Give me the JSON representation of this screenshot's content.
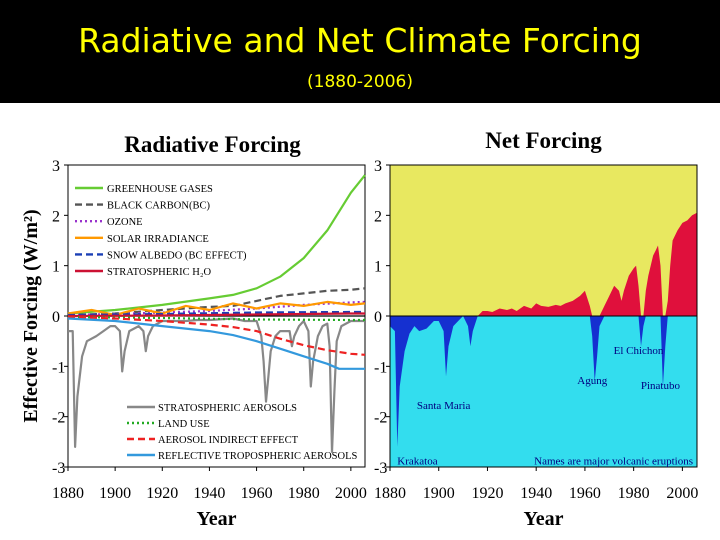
{
  "slide": {
    "title": "Radiative and Net Climate Forcing",
    "subtitle": "(1880-2006)"
  },
  "colors": {
    "header_bg": "#000000",
    "title_text": "#ffff00",
    "positive_fill": "#e8e860",
    "net_positive": "#e0103c",
    "negative_fill": "#33ddee",
    "net_negative": "#1530d0"
  },
  "chart_data": [
    {
      "type": "line",
      "title": "Radiative Forcing",
      "xlabel": "Year",
      "ylabel": "Effective Forcing (W/m²)",
      "xlim": [
        1880,
        2006
      ],
      "ylim": [
        -3,
        3
      ],
      "xticks": [
        1880,
        1900,
        1920,
        1940,
        1960,
        1980,
        2000
      ],
      "yticks": [
        3,
        2,
        1,
        0,
        -1,
        -2,
        -3
      ],
      "ytick_labels": [
        "3",
        "2",
        "1",
        "0",
        "-1",
        "-2",
        "-3"
      ],
      "legend_positive_placement": "top-left",
      "legend_negative_placement": "bottom-center",
      "series": [
        {
          "name": "GREENHOUSE GASES",
          "color": "#66cc33",
          "dash": "solid",
          "x": [
            1880,
            1900,
            1920,
            1940,
            1950,
            1960,
            1970,
            1980,
            1990,
            2000,
            2006
          ],
          "y": [
            0.05,
            0.12,
            0.22,
            0.35,
            0.42,
            0.55,
            0.78,
            1.15,
            1.7,
            2.45,
            2.8
          ]
        },
        {
          "name": "BLACK CARBON(BC)",
          "color": "#555555",
          "dash": "dashed",
          "x": [
            1880,
            1900,
            1920,
            1940,
            1950,
            1960,
            1970,
            1980,
            1990,
            2000,
            2006
          ],
          "y": [
            0.02,
            0.05,
            0.12,
            0.18,
            0.2,
            0.3,
            0.4,
            0.45,
            0.5,
            0.52,
            0.55
          ]
        },
        {
          "name": "OZONE",
          "color": "#9933cc",
          "dash": "dotted",
          "x": [
            1880,
            1900,
            1920,
            1940,
            1960,
            1980,
            2000,
            2006
          ],
          "y": [
            0.02,
            0.04,
            0.07,
            0.1,
            0.15,
            0.22,
            0.27,
            0.28
          ]
        },
        {
          "name": "SOLAR IRRADIANCE",
          "color": "#ff9900",
          "dash": "solid",
          "x": [
            1880,
            1890,
            1900,
            1910,
            1920,
            1930,
            1940,
            1950,
            1960,
            1970,
            1980,
            1990,
            2000,
            2006
          ],
          "y": [
            0.05,
            0.12,
            0.02,
            0.15,
            0.05,
            0.2,
            0.12,
            0.25,
            0.15,
            0.25,
            0.2,
            0.28,
            0.22,
            0.25
          ]
        },
        {
          "name": "SNOW ALBEDO (BC EFFECT)",
          "color": "#1a3fb5",
          "dash": "dashed",
          "x": [
            1880,
            1920,
            1960,
            2000,
            2006
          ],
          "y": [
            0.02,
            0.04,
            0.07,
            0.08,
            0.08
          ]
        },
        {
          "name": "STRATOSPHERIC H₂O",
          "color": "#cc1133",
          "dash": "solid",
          "x": [
            1880,
            1920,
            1960,
            2000,
            2006
          ],
          "y": [
            0.0,
            0.01,
            0.03,
            0.05,
            0.05
          ]
        },
        {
          "name": "STRATOSPHERIC AEROSOLS",
          "color": "#888888",
          "dash": "solid",
          "x": [
            1880,
            1882,
            1883,
            1884,
            1886,
            1888,
            1892,
            1895,
            1898,
            1900,
            1902,
            1903,
            1904,
            1906,
            1910,
            1912,
            1913,
            1914,
            1916,
            1920,
            1925,
            1930,
            1935,
            1940,
            1950,
            1955,
            1960,
            1962,
            1963,
            1964,
            1965,
            1966,
            1968,
            1970,
            1974,
            1975,
            1976,
            1978,
            1980,
            1982,
            1983,
            1984,
            1986,
            1988,
            1990,
            1991,
            1992,
            1993,
            1994,
            1996,
            2000,
            2006
          ],
          "y": [
            -0.3,
            -0.3,
            -2.6,
            -1.6,
            -0.8,
            -0.5,
            -0.4,
            -0.3,
            -0.2,
            -0.2,
            -0.3,
            -1.1,
            -0.7,
            -0.3,
            -0.2,
            -0.3,
            -0.7,
            -0.4,
            -0.2,
            -0.1,
            -0.1,
            -0.1,
            -0.08,
            -0.08,
            -0.05,
            -0.1,
            -0.1,
            -0.4,
            -0.9,
            -1.7,
            -1.2,
            -0.7,
            -0.4,
            -0.3,
            -0.3,
            -0.6,
            -0.4,
            -0.2,
            -0.1,
            -0.3,
            -1.4,
            -0.9,
            -0.4,
            -0.2,
            -0.15,
            -0.6,
            -2.7,
            -1.5,
            -0.5,
            -0.2,
            -0.1,
            -0.1
          ]
        },
        {
          "name": "LAND USE",
          "color": "#22aa22",
          "dash": "dotted",
          "x": [
            1880,
            1920,
            1960,
            2000,
            2006
          ],
          "y": [
            -0.02,
            -0.04,
            -0.07,
            -0.08,
            -0.08
          ]
        },
        {
          "name": "AEROSOL INDIRECT EFFECT",
          "color": "#ee2222",
          "dash": "dashed",
          "x": [
            1880,
            1900,
            1920,
            1940,
            1950,
            1960,
            1970,
            1980,
            1990,
            2000,
            2006
          ],
          "y": [
            -0.02,
            -0.05,
            -0.1,
            -0.17,
            -0.22,
            -0.3,
            -0.45,
            -0.58,
            -0.68,
            -0.75,
            -0.77
          ]
        },
        {
          "name": "REFLECTIVE TROPOSPHERIC AEROSOLS",
          "color": "#3399dd",
          "dash": "solid",
          "x": [
            1880,
            1900,
            1920,
            1940,
            1950,
            1960,
            1970,
            1980,
            1990,
            1995,
            2000,
            2006
          ],
          "y": [
            -0.05,
            -0.1,
            -0.2,
            -0.3,
            -0.38,
            -0.5,
            -0.65,
            -0.8,
            -0.95,
            -1.05,
            -1.05,
            -1.05
          ]
        }
      ]
    },
    {
      "type": "area",
      "title": "Net Forcing",
      "xlabel": "Year",
      "xlim": [
        1880,
        2006
      ],
      "ylim": [
        -3,
        3
      ],
      "xticks": [
        1880,
        1900,
        1920,
        1940,
        1960,
        1980,
        2000
      ],
      "yticks": [
        3,
        2,
        1,
        0,
        -1,
        -2,
        -3
      ],
      "ytick_labels": [
        "3",
        "2",
        "1",
        "0",
        "-1",
        "-2",
        "-3"
      ],
      "net": {
        "x": [
          1880,
          1882,
          1883,
          1884,
          1886,
          1888,
          1890,
          1892,
          1895,
          1898,
          1900,
          1902,
          1903,
          1904,
          1906,
          1908,
          1910,
          1912,
          1913,
          1914,
          1916,
          1918,
          1920,
          1922,
          1925,
          1928,
          1930,
          1932,
          1935,
          1938,
          1940,
          1942,
          1945,
          1948,
          1950,
          1952,
          1955,
          1958,
          1960,
          1962,
          1963,
          1964,
          1965,
          1966,
          1968,
          1970,
          1972,
          1974,
          1975,
          1976,
          1978,
          1980,
          1981,
          1982,
          1983,
          1984,
          1985,
          1986,
          1988,
          1989,
          1990,
          1991,
          1992,
          1993,
          1994,
          1995,
          1996,
          1998,
          2000,
          2002,
          2004,
          2006
        ],
        "y": [
          -0.2,
          -0.3,
          -2.6,
          -1.4,
          -0.7,
          -0.35,
          -0.2,
          -0.3,
          -0.25,
          -0.1,
          -0.1,
          -0.3,
          -1.2,
          -0.6,
          -0.2,
          -0.1,
          0.0,
          -0.2,
          -0.6,
          -0.3,
          0.0,
          0.1,
          0.1,
          0.08,
          0.15,
          0.12,
          0.15,
          0.1,
          0.2,
          0.15,
          0.25,
          0.2,
          0.18,
          0.22,
          0.2,
          0.25,
          0.3,
          0.4,
          0.5,
          0.2,
          -0.4,
          -1.3,
          -0.8,
          -0.2,
          0.2,
          0.4,
          0.6,
          0.5,
          0.3,
          0.5,
          0.8,
          0.95,
          1.0,
          0.6,
          -0.6,
          -0.2,
          0.5,
          0.8,
          1.2,
          1.3,
          1.4,
          1.0,
          -1.4,
          -0.6,
          0.3,
          1.0,
          1.5,
          1.7,
          1.85,
          1.9,
          2.0,
          2.05
        ]
      },
      "annotations": [
        {
          "text": "Krakatoa",
          "x": 1883,
          "y": -2.95
        },
        {
          "text": "Santa Maria",
          "x": 1902,
          "y": -1.85
        },
        {
          "text": "Agung",
          "x": 1963,
          "y": -1.35
        },
        {
          "text": "El Chichon",
          "x": 1982,
          "y": -0.75
        },
        {
          "text": "Pinatubo",
          "x": 1991,
          "y": -1.45
        },
        {
          "text": "Names are major volcanic eruptions",
          "x": 1994,
          "y": -2.95
        }
      ]
    }
  ]
}
